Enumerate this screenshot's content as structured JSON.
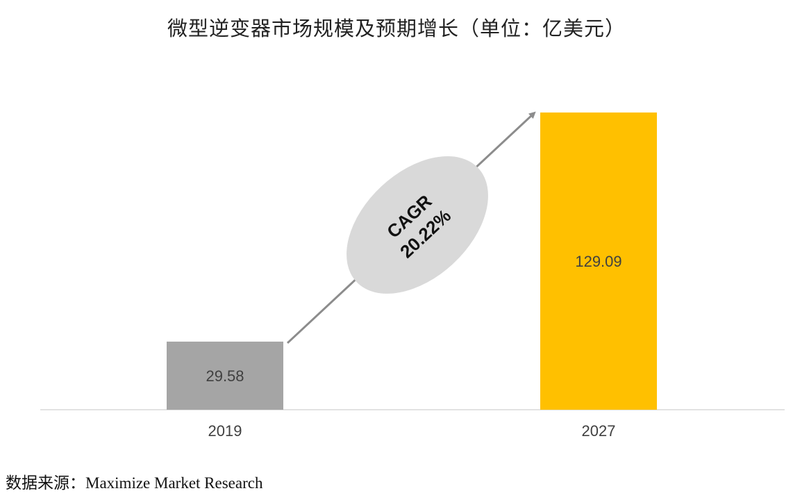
{
  "chart_data": {
    "type": "bar",
    "title": "微型逆变器市场规模及预期增长（单位：亿美元）",
    "categories": [
      "2019",
      "2027"
    ],
    "values": [
      29.58,
      129.09
    ],
    "value_labels": [
      "29.58",
      "129.09"
    ],
    "ylim": [
      0,
      129.09
    ],
    "grid": false,
    "legend": "none",
    "annotation": {
      "line1": "CAGR",
      "line2": "20.22%"
    }
  },
  "colors": {
    "bars": [
      "#a5a5a5",
      "#ffc000"
    ],
    "baseline": "#d9d9d9",
    "arrow": "#8c8c8c",
    "ellipse": "#d9d9d9",
    "value_label": "#404040",
    "tick_label": "#404040"
  },
  "source": {
    "text": "数据来源：Maximize Market Research"
  }
}
